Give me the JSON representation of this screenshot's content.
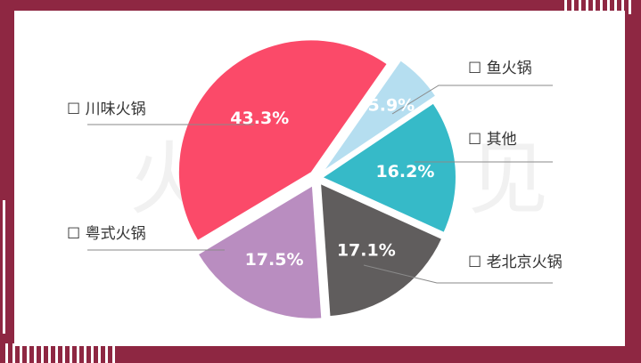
{
  "colors": {
    "background": "#8e2742",
    "card": "#ffffff",
    "watermark": "#f1f1f1",
    "leader": "#8a8a8a"
  },
  "watermark": {
    "left": "火",
    "right": "见"
  },
  "chart_data": {
    "type": "pie",
    "exploded": true,
    "legend_marker": "☐",
    "slices": [
      {
        "name": "川味火锅",
        "value": 43.3,
        "label": "43.3%",
        "color": "#fb4a69"
      },
      {
        "name": "鱼火锅",
        "value": 5.9,
        "label": "5.9%",
        "color": "#b5def0"
      },
      {
        "name": "其他",
        "value": 16.2,
        "label": "16.2%",
        "color": "#36bac8"
      },
      {
        "name": "老北京火锅",
        "value": 17.1,
        "label": "17.1%",
        "color": "#605d5d"
      },
      {
        "name": "粤式火锅",
        "value": 17.5,
        "label": "17.5%",
        "color": "#b98dc0"
      }
    ]
  }
}
